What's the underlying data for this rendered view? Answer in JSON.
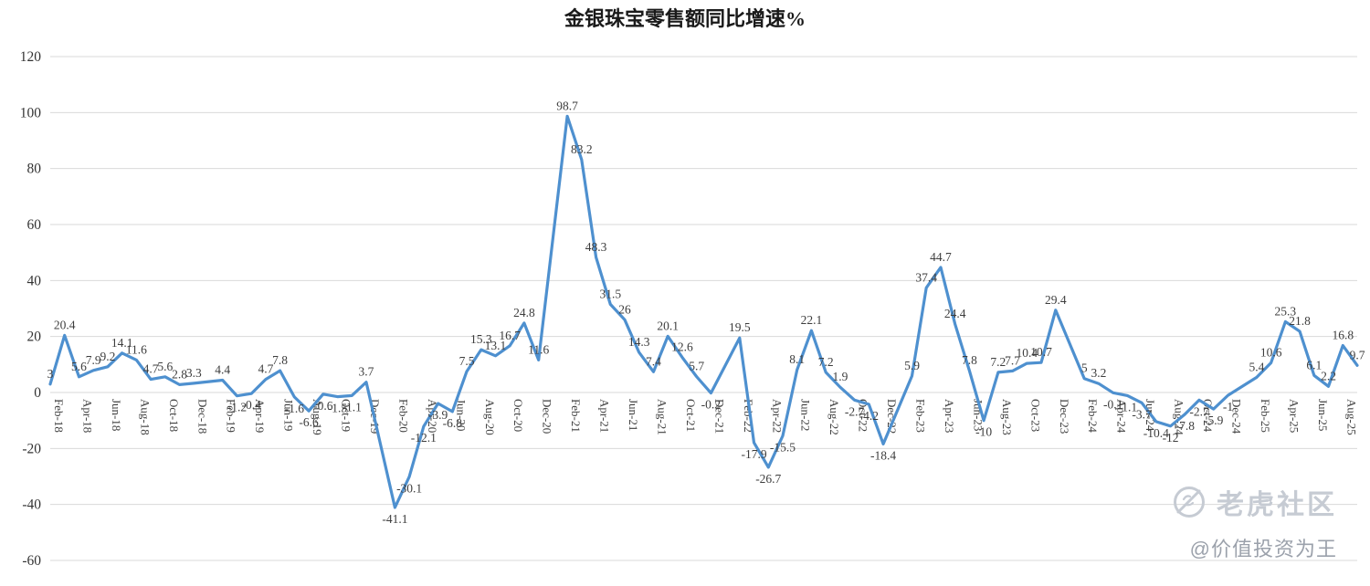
{
  "chart_data": {
    "type": "line",
    "title": "金银珠宝零售额同比增速%",
    "series_name": "金银珠宝零售额同比增速%",
    "x": [
      "Feb-18",
      "Mar-18",
      "Apr-18",
      "May-18",
      "Jun-18",
      "Jul-18",
      "Aug-18",
      "Sep-18",
      "Oct-18",
      "Nov-18",
      "Dec-18",
      "Feb-19",
      "Mar-19",
      "Apr-19",
      "May-19",
      "Jun-19",
      "Jul-19",
      "Aug-19",
      "Sep-19",
      "Oct-19",
      "Nov-19",
      "Dec-19",
      "Feb-20",
      "Mar-20",
      "Apr-20",
      "May-20",
      "Jun-20",
      "Jul-20",
      "Aug-20",
      "Sep-20",
      "Oct-20",
      "Nov-20",
      "Dec-20",
      "Feb-21",
      "Mar-21",
      "Apr-21",
      "May-21",
      "Jun-21",
      "Jul-21",
      "Aug-21",
      "Sep-21",
      "Oct-21",
      "Nov-21",
      "Dec-21",
      "Feb-22",
      "Mar-22",
      "Apr-22",
      "May-22",
      "Jun-22",
      "Jul-22",
      "Aug-22",
      "Sep-22",
      "Oct-22",
      "Nov-22",
      "Dec-22",
      "Feb-23",
      "Mar-23",
      "Apr-23",
      "May-23",
      "Jun-23",
      "Jul-23",
      "Aug-23",
      "Sep-23",
      "Oct-23",
      "Nov-23",
      "Dec-23",
      "Feb-24",
      "Mar-24",
      "Apr-24",
      "May-24",
      "Jun-24",
      "Jul-24",
      "Aug-24",
      "Sep-24",
      "Oct-24",
      "Nov-24",
      "Dec-24",
      "Feb-25",
      "Mar-25",
      "Apr-25",
      "May-25",
      "Jun-25",
      "Jul-25",
      "Aug-25",
      "Sep-25"
    ],
    "values": [
      3,
      20.4,
      5.6,
      7.9,
      9.2,
      14.1,
      11.6,
      4.7,
      5.6,
      2.8,
      3.3,
      4.4,
      -1.2,
      -0.4,
      4.7,
      7.8,
      -1.6,
      -6.6,
      -0.6,
      -1.5,
      -1.1,
      3.7,
      -41.1,
      -30.1,
      -12.1,
      -3.9,
      -6.8,
      7.5,
      15.3,
      13.1,
      16.7,
      24.8,
      11.6,
      98.7,
      83.2,
      48.3,
      31.5,
      26,
      14.3,
      7.4,
      20.1,
      12.6,
      5.7,
      -0.2,
      19.5,
      -17.9,
      -26.7,
      -15.5,
      8.1,
      22.1,
      7.2,
      1.9,
      -2.7,
      -4.2,
      -18.4,
      5.9,
      37.4,
      44.7,
      24.4,
      7.8,
      -10,
      7.2,
      7.7,
      10.4,
      10.7,
      29.4,
      5,
      3.2,
      -0.1,
      -1.1,
      -3.7,
      -10.4,
      -12,
      -7.8,
      -2.7,
      -5.9,
      -1,
      5.4,
      10.6,
      25.3,
      21.8,
      6.1,
      2.2,
      16.8,
      9.7
    ],
    "xticks": [
      "Feb-18",
      "Apr-18",
      "Jun-18",
      "Aug-18",
      "Oct-18",
      "Dec-18",
      "Feb-19",
      "Apr-19",
      "Jun-19",
      "Aug-19",
      "Oct-19",
      "Dec-19",
      "Feb-20",
      "Apr-20",
      "Jun-20",
      "Aug-20",
      "Oct-20",
      "Dec-20",
      "Feb-21",
      "Apr-21",
      "Jun-21",
      "Aug-21",
      "Oct-21",
      "Dec-21",
      "Feb-22",
      "Apr-22",
      "Jun-22",
      "Aug-22",
      "Oct-22",
      "Dec-22",
      "Feb-23",
      "Apr-23",
      "Jun-23",
      "Aug-23",
      "Oct-23",
      "Dec-23",
      "Feb-24",
      "Apr-24",
      "Jun-24",
      "Aug-24",
      "Oct-24",
      "Dec-24",
      "Feb-25",
      "Apr-25",
      "Jun-25",
      "Aug-25"
    ],
    "yticks": [
      120,
      100,
      80,
      60,
      40,
      20,
      0,
      -20,
      -40,
      -60
    ],
    "ylim": [
      -60,
      120
    ],
    "grid": "horizontal",
    "legend": "none",
    "line_color": "#4E90CF",
    "grid_color": "#d9d9d9",
    "label_color": "#3d3d3d",
    "axis_text_color": "#404040",
    "show_point_labels": true
  },
  "watermark": {
    "brand": "老虎社区",
    "handle": "@价值投资为王",
    "logo_icon": "tiger-circle-icon",
    "color": "#c6cbd3"
  }
}
